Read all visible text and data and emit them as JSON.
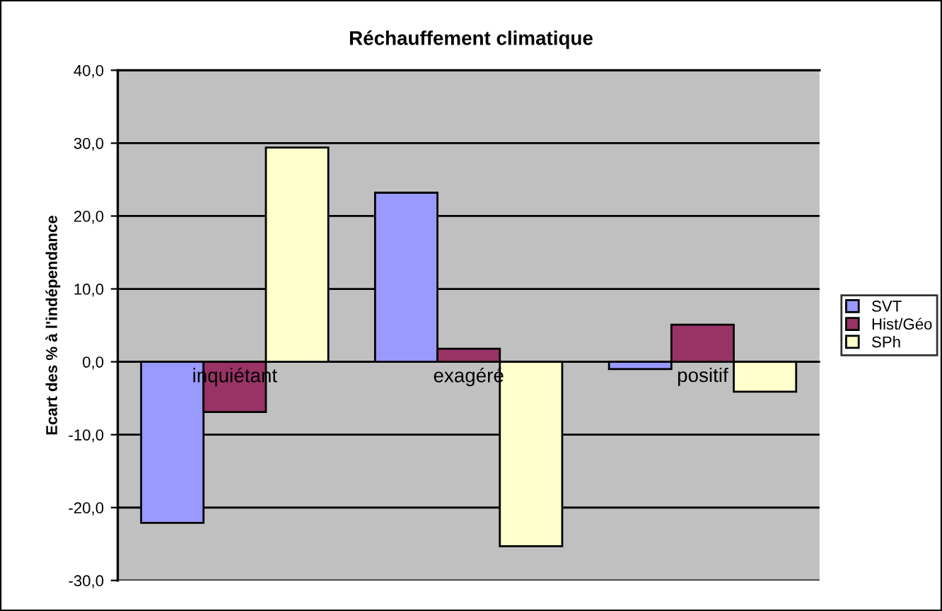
{
  "chart_data": {
    "type": "bar",
    "title": "Réchauffement climatique",
    "ylabel": "Ecart des % à l'indépendance",
    "categories": [
      "inquiétant",
      "exagéré",
      "positif"
    ],
    "series": [
      {
        "name": "SVT",
        "color": "#9999ff",
        "values": [
          -22.1,
          23.2,
          -1.0
        ]
      },
      {
        "name": "Hist/Géo",
        "color": "#993366",
        "values": [
          -6.9,
          1.8,
          5.1
        ]
      },
      {
        "name": "SPh",
        "color": "#ffffcc",
        "values": [
          29.4,
          -25.3,
          -4.1
        ]
      }
    ],
    "ylim": [
      -30,
      40
    ],
    "yticks": [
      {
        "value": -30,
        "label": "-30,0"
      },
      {
        "value": -20,
        "label": "-20,0"
      },
      {
        "value": -10,
        "label": "-10,0"
      },
      {
        "value": 0,
        "label": "0,0"
      },
      {
        "value": 10,
        "label": "10,0"
      },
      {
        "value": 20,
        "label": "20,0"
      },
      {
        "value": 30,
        "label": "30,0"
      },
      {
        "value": 40,
        "label": "40,0"
      }
    ],
    "grid": "y",
    "legend": "right"
  }
}
